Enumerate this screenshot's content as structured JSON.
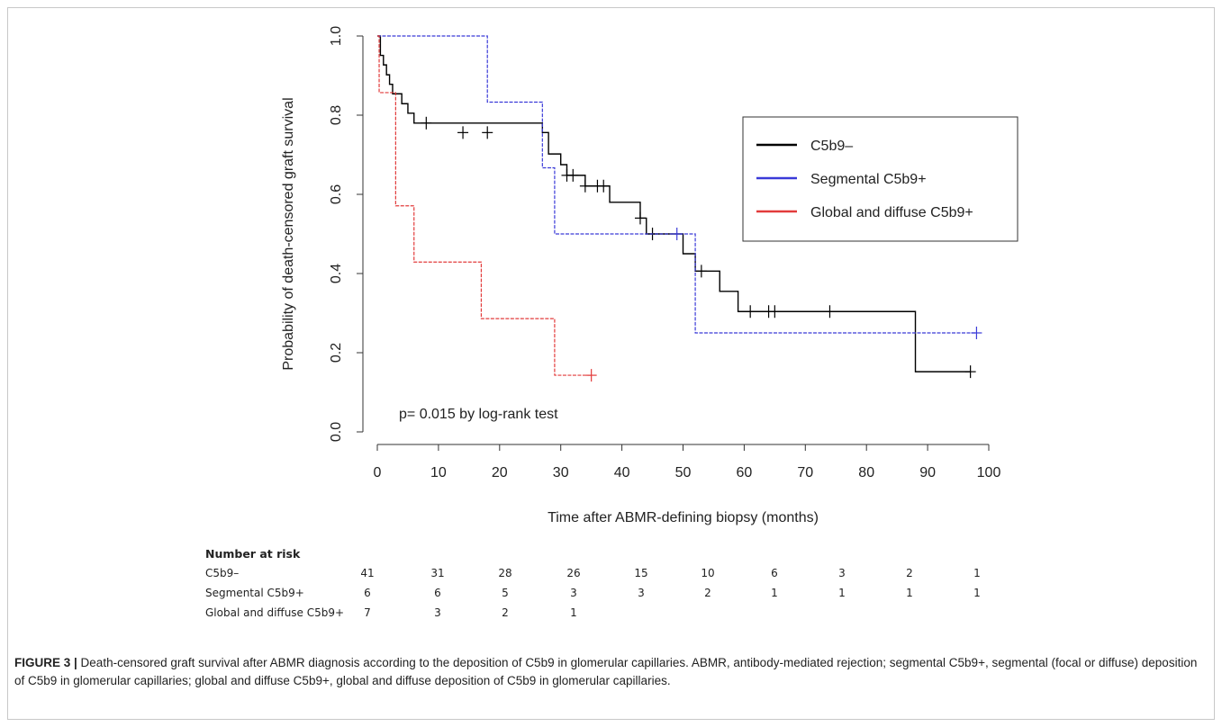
{
  "chart_data": {
    "type": "line",
    "step": true,
    "xlabel": "Time after ABMR-defining biopsy (months)",
    "ylabel": "Probability of death-censored graft survival",
    "xlim": [
      0,
      100
    ],
    "ylim": [
      0,
      1
    ],
    "x_ticks": [
      0,
      10,
      20,
      30,
      40,
      50,
      60,
      70,
      80,
      90,
      100
    ],
    "y_ticks": [
      0.0,
      0.2,
      0.4,
      0.6,
      0.8,
      1.0
    ],
    "x_tick_labels": [
      "0",
      "10",
      "20",
      "30",
      "40",
      "50",
      "60",
      "70",
      "80",
      "90",
      "100"
    ],
    "y_tick_labels": [
      "0.0",
      "0.2",
      "0.4",
      "0.6",
      "0.8",
      "1.0"
    ],
    "annotation": "p= 0.015 by log-rank test",
    "legend_position": "top-right",
    "series": [
      {
        "name": "C5b9–",
        "color": "#000000",
        "steps": [
          [
            0,
            1.0
          ],
          [
            0.5,
            0.951
          ],
          [
            1,
            0.927
          ],
          [
            1.5,
            0.902
          ],
          [
            2,
            0.878
          ],
          [
            2.5,
            0.854
          ],
          [
            4,
            0.829
          ],
          [
            5,
            0.805
          ],
          [
            6,
            0.78
          ],
          [
            27,
            0.756
          ],
          [
            28,
            0.702
          ],
          [
            30,
            0.675
          ],
          [
            31,
            0.648
          ],
          [
            34,
            0.621
          ],
          [
            38,
            0.58
          ],
          [
            43,
            0.54
          ],
          [
            44,
            0.5
          ],
          [
            50,
            0.45
          ],
          [
            52,
            0.406
          ],
          [
            56,
            0.355
          ],
          [
            59,
            0.304
          ],
          [
            88,
            0.152
          ]
        ],
        "end": 97,
        "censor": [
          [
            8,
            0.78
          ],
          [
            14,
            0.756
          ],
          [
            18,
            0.756
          ],
          [
            31,
            0.648
          ],
          [
            32,
            0.648
          ],
          [
            34,
            0.621
          ],
          [
            36,
            0.621
          ],
          [
            37,
            0.621
          ],
          [
            43,
            0.54
          ],
          [
            45,
            0.5
          ],
          [
            53,
            0.406
          ],
          [
            61,
            0.304
          ],
          [
            64,
            0.304
          ],
          [
            65,
            0.304
          ],
          [
            74,
            0.304
          ],
          [
            97,
            0.152
          ]
        ]
      },
      {
        "name": "Segmental C5b9+",
        "color": "#3a3ad8",
        "steps": [
          [
            0,
            1.0
          ],
          [
            18,
            0.833
          ],
          [
            27,
            0.667
          ],
          [
            29,
            0.5
          ],
          [
            52,
            0.25
          ]
        ],
        "end": 98,
        "censor": [
          [
            49,
            0.5
          ],
          [
            98,
            0.25
          ]
        ]
      },
      {
        "name": "Global and diffuse C5b9+",
        "color": "#e23b3b",
        "steps": [
          [
            0,
            1.0
          ],
          [
            0.3,
            0.857
          ],
          [
            3,
            0.571
          ],
          [
            6,
            0.429
          ],
          [
            17,
            0.286
          ],
          [
            29,
            0.143
          ]
        ],
        "end": 35,
        "censor": [
          [
            35,
            0.143
          ]
        ]
      }
    ]
  },
  "risk_table": {
    "title": "Number at risk",
    "times": [
      0,
      10,
      20,
      30,
      40,
      50,
      60,
      70,
      80,
      90
    ],
    "rows": [
      {
        "label": "C5b9–",
        "values": [
          "41",
          "31",
          "28",
          "26",
          "15",
          "10",
          "6",
          "3",
          "2",
          "1"
        ]
      },
      {
        "label": "Segmental C5b9+",
        "values": [
          "6",
          "6",
          "5",
          "3",
          "3",
          "2",
          "1",
          "1",
          "1",
          "1"
        ]
      },
      {
        "label": "Global and diffuse C5b9+",
        "values": [
          "7",
          "3",
          "2",
          "1"
        ]
      }
    ]
  },
  "caption": {
    "label": "FIGURE 3 |",
    "text": " Death-censored graft survival after ABMR diagnosis according to the deposition of C5b9 in glomerular capillaries. ABMR, antibody-mediated rejection; segmental C5b9+, segmental (focal or diffuse) deposition of C5b9 in glomerular capillaries; global and diffuse C5b9+, global and diffuse deposition of C5b9 in glomerular capillaries."
  }
}
